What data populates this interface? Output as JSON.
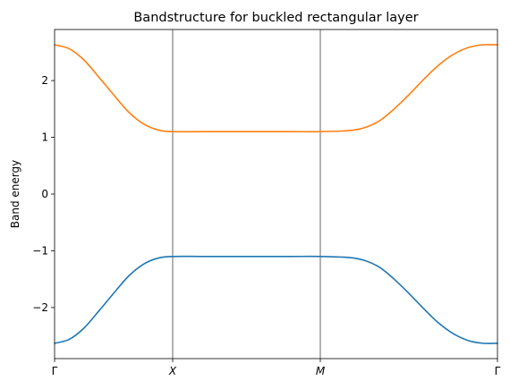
{
  "chart_data": {
    "type": "line",
    "title": "Bandstructure for buckled rectangular layer",
    "xlabel": "",
    "ylabel": "Band energy",
    "xlim": [
      0,
      3
    ],
    "ylim": [
      -2.9,
      2.9
    ],
    "grid": false,
    "legend": "none",
    "x_ticks": [
      {
        "value": 0,
        "label": "Γ",
        "italic": false
      },
      {
        "value": 0.8,
        "label": "X",
        "italic": true
      },
      {
        "value": 1.8,
        "label": "M",
        "italic": true
      },
      {
        "value": 3,
        "label": "Γ",
        "italic": false
      }
    ],
    "y_ticks": [
      -2,
      -1,
      0,
      1,
      2
    ],
    "y_tick_labels": [
      "−2",
      "−1",
      "0",
      "1",
      "2"
    ],
    "vertical_lines_at": [
      0.8,
      1.8
    ],
    "x": [
      0,
      0.1,
      0.2,
      0.3,
      0.4,
      0.5,
      0.6,
      0.7,
      0.8,
      1.0,
      1.2,
      1.4,
      1.6,
      1.8,
      2.0,
      2.1,
      2.2,
      2.3,
      2.4,
      2.5,
      2.6,
      2.7,
      2.8,
      2.9,
      3.0
    ],
    "series": [
      {
        "color": "#1f77b4",
        "values": [
          -2.63,
          -2.56,
          -2.36,
          -2.06,
          -1.75,
          -1.45,
          -1.24,
          -1.13,
          -1.1,
          -1.1,
          -1.1,
          -1.1,
          -1.1,
          -1.1,
          -1.12,
          -1.17,
          -1.29,
          -1.5,
          -1.75,
          -2.02,
          -2.27,
          -2.46,
          -2.58,
          -2.63,
          -2.63
        ]
      },
      {
        "color": "#ff7f0e",
        "values": [
          2.63,
          2.56,
          2.36,
          2.06,
          1.75,
          1.45,
          1.24,
          1.13,
          1.1,
          1.1,
          1.1,
          1.1,
          1.1,
          1.1,
          1.12,
          1.17,
          1.29,
          1.5,
          1.75,
          2.02,
          2.27,
          2.46,
          2.58,
          2.63,
          2.63
        ]
      }
    ]
  }
}
